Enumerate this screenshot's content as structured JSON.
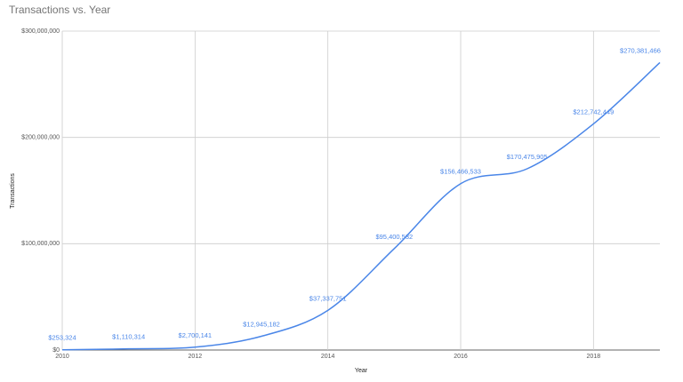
{
  "chart_data": {
    "type": "line",
    "title": "Transactions vs. Year",
    "x_label": "Year",
    "y_label": "Transactions",
    "x": [
      2010,
      2011,
      2012,
      2013,
      2014,
      2015,
      2016,
      2017,
      2018,
      2019
    ],
    "series": [
      {
        "name": "Transactions",
        "color": "#4a86e8",
        "values": [
          253324,
          1110314,
          2700141,
          12945182,
          37337751,
          95400532,
          156466533,
          170475905,
          212742449,
          270381466
        ],
        "value_labels": [
          "$253,324",
          "$1,110,314",
          "$2,700,141",
          "$12,945,182",
          "$37,337,751",
          "$95,400,532",
          "$156,466,533",
          "$170,475,905",
          "$212,742,449",
          "$270,381,466"
        ]
      }
    ],
    "xlim": [
      2010,
      2019
    ],
    "xticks": [
      2010,
      2012,
      2014,
      2016,
      2018
    ],
    "ylim": [
      0,
      300000000
    ],
    "yticks": [
      {
        "value": 0,
        "label": "$0"
      },
      {
        "value": 100000000,
        "label": "$100,000,000"
      },
      {
        "value": 200000000,
        "label": "$200,000,000"
      },
      {
        "value": 300000000,
        "label": "$300,000,000"
      }
    ],
    "grid": true
  }
}
